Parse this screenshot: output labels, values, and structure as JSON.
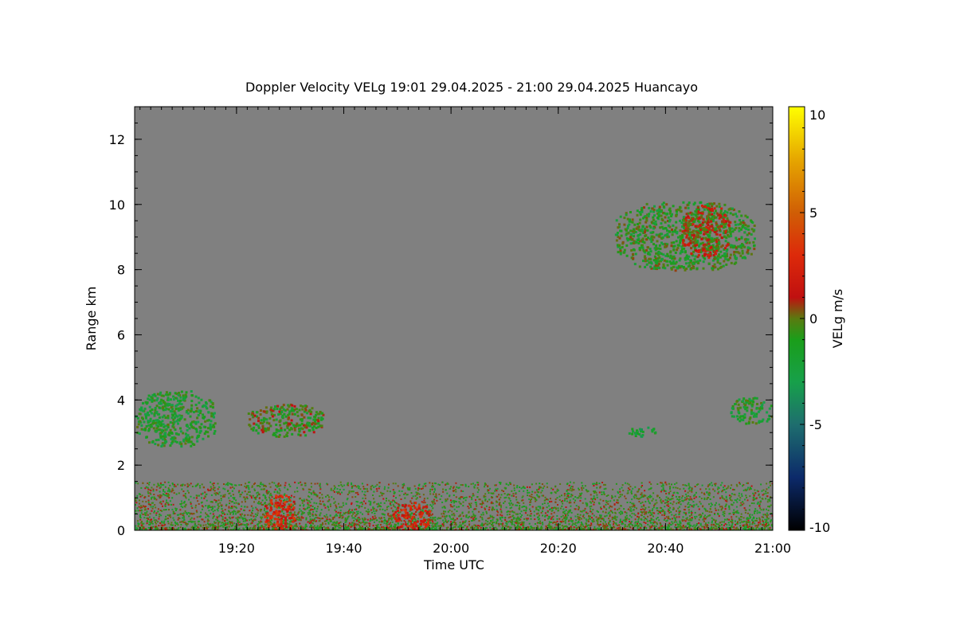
{
  "chart_data": {
    "type": "heatmap",
    "title": "Doppler Velocity VELg   19:01 29.04.2025 - 21:00 29.04.2025 Huancayo",
    "xlabel": "Time UTC",
    "ylabel": "Range km",
    "x_ticks": [
      "19:20",
      "19:40",
      "20:00",
      "20:20",
      "20:40",
      "21:00"
    ],
    "x_tick_minutes": [
      1160,
      1180,
      1200,
      1220,
      1240,
      1260
    ],
    "xlim_minutes": [
      1141,
      1260
    ],
    "y_ticks": [
      "0",
      "2",
      "4",
      "6",
      "8",
      "10",
      "12"
    ],
    "y_tick_values": [
      0,
      2,
      4,
      6,
      8,
      10,
      12
    ],
    "ylim": [
      0,
      13
    ],
    "background_color": "#808080",
    "colorbar": {
      "label": "VELg m/s",
      "ticks": [
        "10",
        "5",
        "0",
        "-5",
        "-10"
      ],
      "tick_values": [
        10,
        5,
        0,
        -5,
        -10
      ],
      "range": [
        -10,
        10
      ],
      "stops": [
        {
          "v": -10,
          "color": "#000000"
        },
        {
          "v": -7.5,
          "color": "#0c2a6a"
        },
        {
          "v": -5,
          "color": "#1e6e6e"
        },
        {
          "v": -3,
          "color": "#17a04a"
        },
        {
          "v": -1,
          "color": "#1a9e1a"
        },
        {
          "v": 0,
          "color": "#5a7a10"
        },
        {
          "v": 1,
          "color": "#c01010"
        },
        {
          "v": 3,
          "color": "#dd2a0a"
        },
        {
          "v": 5,
          "color": "#d05e05"
        },
        {
          "v": 7.5,
          "color": "#e6a600"
        },
        {
          "v": 10,
          "color": "#ffff00"
        }
      ]
    },
    "echo_regions": [
      {
        "name": "upper-cloud",
        "t_start": 1230.5,
        "t_end": 1256.5,
        "range_bottom": 8.0,
        "range_top": 10.1,
        "velocity_mean": -1.0
      },
      {
        "name": "upper-cloud-core",
        "t_start": 1243,
        "t_end": 1252,
        "range_bottom": 8.4,
        "range_top": 10.0,
        "velocity_mean": 0.8
      },
      {
        "name": "mid-cloud-left",
        "t_start": 1141,
        "t_end": 1156,
        "range_bottom": 2.6,
        "range_top": 4.3,
        "velocity_mean": -1.5
      },
      {
        "name": "mid-cloud-streak",
        "t_start": 1162,
        "t_end": 1176,
        "range_bottom": 2.9,
        "range_top": 3.9,
        "velocity_mean": -0.5
      },
      {
        "name": "mid-cloud-right",
        "t_start": 1252,
        "t_end": 1260,
        "range_bottom": 3.3,
        "range_top": 4.1,
        "velocity_mean": -1.5
      },
      {
        "name": "mid-cloud-small",
        "t_start": 1233,
        "t_end": 1238,
        "range_bottom": 2.9,
        "range_top": 3.2,
        "velocity_mean": -2.0
      },
      {
        "name": "boundary-layer",
        "t_start": 1141,
        "t_end": 1260,
        "range_bottom": 0.0,
        "range_top": 1.5,
        "velocity_mean": -0.5
      },
      {
        "name": "boundary-layer-updraft-1",
        "t_start": 1165,
        "t_end": 1171,
        "range_bottom": 0.0,
        "range_top": 1.1,
        "velocity_mean": 2.5
      },
      {
        "name": "boundary-layer-updraft-2",
        "t_start": 1189,
        "t_end": 1196,
        "range_bottom": 0.0,
        "range_top": 0.9,
        "velocity_mean": 2.0
      }
    ]
  }
}
